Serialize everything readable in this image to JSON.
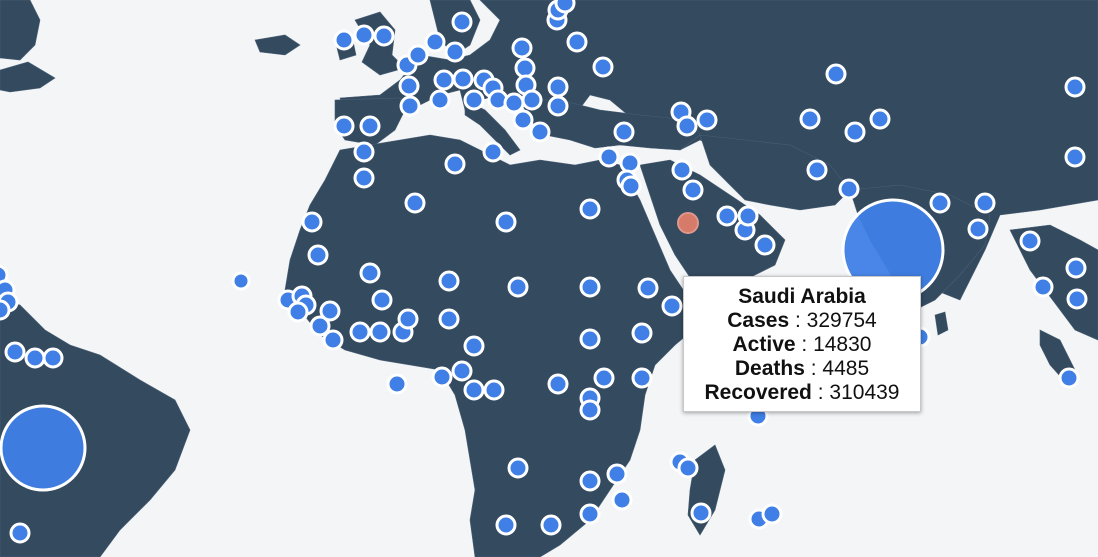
{
  "map": {
    "land_color": "#344a5f",
    "ocean_color": "#f3f5f7",
    "marker_color": "#3f7fe6",
    "marker_stroke": "#ffffff",
    "highlight_color": "#e8806b",
    "highlighted_country": "Saudi Arabia"
  },
  "tooltip": {
    "country": "Saudi Arabia",
    "cases_label": "Cases",
    "cases_value": "329754",
    "active_label": "Active",
    "active_value": "14830",
    "deaths_label": "Deaths",
    "deaths_value": "4485",
    "recovered_label": "Recovered",
    "recovered_value": "310439",
    "separator": " : "
  }
}
